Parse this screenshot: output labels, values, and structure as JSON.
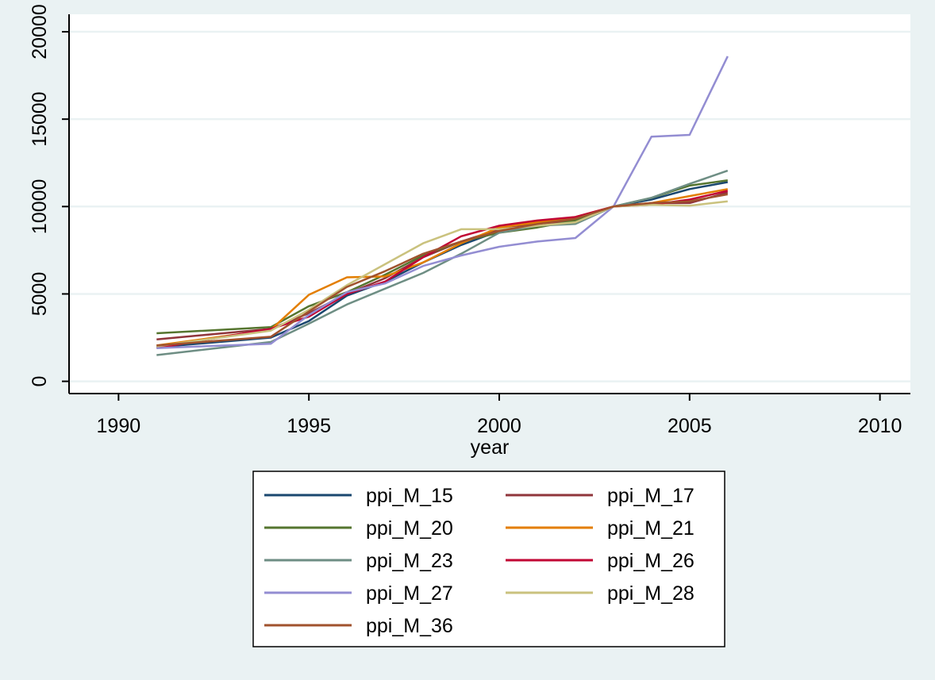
{
  "chart_data": {
    "type": "line",
    "xlabel": "year",
    "ylabel": "",
    "xlim": [
      1988.7,
      2010.8
    ],
    "ylim": [
      -700,
      21000
    ],
    "x_ticks": [
      1990,
      1995,
      2000,
      2005,
      2010
    ],
    "y_ticks": [
      0,
      5000,
      10000,
      15000,
      20000
    ],
    "grid": "horizontal",
    "legend_position": "bottom",
    "colors": {
      "background": "#eaf2f3",
      "plot_background": "#ffffff",
      "grid": "#eaf2f3",
      "axis": "#000000"
    },
    "series": [
      {
        "name": "ppi_M_15",
        "color": "#1a476f",
        "x": [
          1991,
          1994,
          1995,
          1996,
          1997,
          1998,
          1999,
          2000,
          2001,
          2002,
          2003,
          2004,
          2005,
          2006
        ],
        "values": [
          1950,
          2500,
          3450,
          4900,
          5700,
          6800,
          7800,
          8600,
          9000,
          9300,
          10000,
          10400,
          11000,
          11400
        ]
      },
      {
        "name": "ppi_M_17",
        "color": "#90353b",
        "x": [
          1991,
          1994,
          1995,
          1996,
          1997,
          1998,
          1999,
          2000,
          2001,
          2002,
          2003,
          2004,
          2005,
          2006
        ],
        "values": [
          2400,
          3000,
          3900,
          5000,
          5900,
          7100,
          8000,
          8700,
          9000,
          9200,
          10000,
          10200,
          10200,
          10800
        ]
      },
      {
        "name": "ppi_M_20",
        "color": "#55752f",
        "x": [
          1991,
          1994,
          1995,
          1996,
          1997,
          1998,
          1999,
          2000,
          2001,
          2002,
          2003,
          2004,
          2005,
          2006
        ],
        "values": [
          2750,
          3100,
          4300,
          5100,
          6100,
          7200,
          8000,
          8500,
          8800,
          9200,
          10000,
          10500,
          11200,
          11500
        ]
      },
      {
        "name": "ppi_M_21",
        "color": "#e37e00",
        "x": [
          1991,
          1994,
          1995,
          1996,
          1997,
          1998,
          1999,
          2000,
          2001,
          2002,
          2003,
          2004,
          2005,
          2006
        ],
        "values": [
          2050,
          2950,
          4950,
          5950,
          6000,
          6800,
          7900,
          8800,
          9100,
          9400,
          10000,
          10200,
          10600,
          11000
        ]
      },
      {
        "name": "ppi_M_23",
        "color": "#6e8e84",
        "x": [
          1991,
          1994,
          1995,
          1996,
          1997,
          1998,
          1999,
          2000,
          2001,
          2002,
          2003,
          2004,
          2005,
          2006
        ],
        "values": [
          1500,
          2250,
          3300,
          4400,
          5300,
          6200,
          7300,
          8500,
          8900,
          9000,
          10000,
          10500,
          11300,
          12050
        ]
      },
      {
        "name": "ppi_M_26",
        "color": "#c10534",
        "x": [
          1991,
          1994,
          1995,
          1996,
          1997,
          1998,
          1999,
          2000,
          2001,
          2002,
          2003,
          2004,
          2005,
          2006
        ],
        "values": [
          1900,
          3000,
          3700,
          5000,
          5700,
          7100,
          8300,
          8900,
          9200,
          9400,
          10000,
          10100,
          10400,
          10900
        ]
      },
      {
        "name": "ppi_M_27",
        "color": "#938dd2",
        "x": [
          1991,
          1994,
          1995,
          1996,
          1997,
          1998,
          1999,
          2000,
          2001,
          2002,
          2003,
          2004,
          2005,
          2006
        ],
        "values": [
          1900,
          2150,
          3800,
          5100,
          5600,
          6600,
          7200,
          7700,
          8000,
          8200,
          10000,
          14000,
          14100,
          18600
        ]
      },
      {
        "name": "ppi_M_28",
        "color": "#cac27e",
        "x": [
          1991,
          1994,
          1995,
          1996,
          1997,
          1998,
          1999,
          2000,
          2001,
          2002,
          2003,
          2004,
          2005,
          2006
        ],
        "values": [
          2000,
          2900,
          4100,
          5500,
          6700,
          7900,
          8700,
          8700,
          8900,
          9100,
          10000,
          10100,
          10050,
          10300
        ]
      },
      {
        "name": "ppi_M_36",
        "color": "#a0522d",
        "x": [
          1991,
          1994,
          1995,
          1996,
          1997,
          1998,
          1999,
          2000,
          2001,
          2002,
          2003,
          2004,
          2005,
          2006
        ],
        "values": [
          2050,
          2550,
          4000,
          5400,
          6300,
          7300,
          8000,
          8600,
          9000,
          9300,
          10000,
          10200,
          10300,
          10700
        ]
      }
    ]
  }
}
